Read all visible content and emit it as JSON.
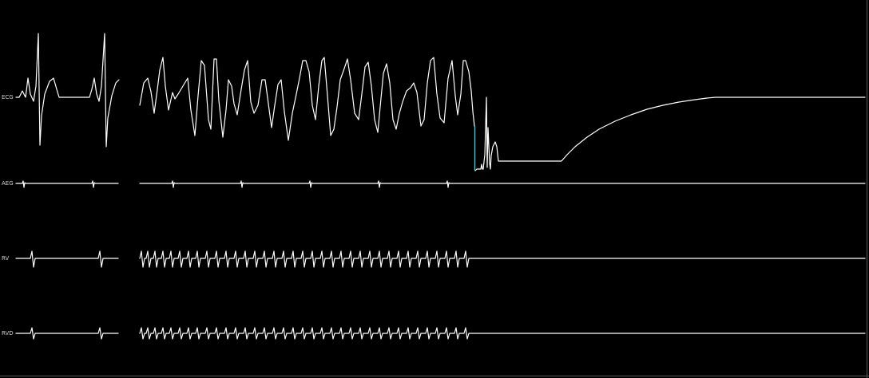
{
  "channels": [
    {
      "id": "ecg",
      "label": "ECG"
    },
    {
      "id": "aeg",
      "label": "AEG"
    },
    {
      "id": "rv",
      "label": "RV"
    },
    {
      "id": "rvd",
      "label": "RVD"
    }
  ],
  "colors": {
    "background": "#000000",
    "trace": "#ffffff",
    "shock_marker": "#3fd7e8",
    "label": "#d0d0d0"
  }
}
